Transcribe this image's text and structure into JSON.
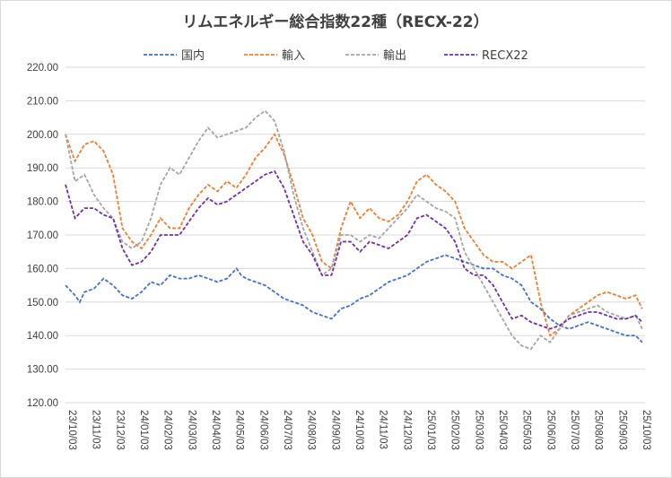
{
  "chart_data": {
    "type": "line",
    "title": "リムエネルギー総合指数22種（RECX-22）",
    "xlabel": "",
    "ylabel": "",
    "ylim": [
      120,
      220
    ],
    "yticks": [
      "220.00",
      "210.00",
      "200.00",
      "190.00",
      "180.00",
      "170.00",
      "160.00",
      "150.00",
      "140.00",
      "130.00",
      "120.00"
    ],
    "ytick_values": [
      220,
      210,
      200,
      190,
      180,
      170,
      160,
      150,
      140,
      130,
      120
    ],
    "xticks": [
      "23/10/03",
      "23/11/03",
      "23/12/03",
      "24/01/03",
      "24/02/03",
      "24/03/03",
      "24/04/03",
      "24/05/03",
      "24/06/03",
      "24/07/03",
      "24/08/03",
      "24/09/03",
      "24/10/03",
      "24/11/03",
      "24/12/03",
      "25/01/03",
      "25/02/03",
      "25/03/03",
      "25/04/03",
      "25/05/03",
      "25/06/03",
      "25/07/03",
      "25/08/03",
      "25/09/03",
      "25/10/03"
    ],
    "grid": true,
    "legend_position": "top",
    "series": [
      {
        "name": "国内",
        "color": "#4472c4",
        "values": [
          [
            0,
            155
          ],
          [
            1,
            152
          ],
          [
            1.5,
            150
          ],
          [
            2,
            153
          ],
          [
            3,
            154
          ],
          [
            4,
            157
          ],
          [
            4.5,
            156
          ],
          [
            5,
            155
          ],
          [
            6,
            152
          ],
          [
            7,
            151
          ],
          [
            8,
            153
          ],
          [
            9,
            156
          ],
          [
            10,
            155
          ],
          [
            11,
            158
          ],
          [
            12,
            157
          ],
          [
            13,
            157
          ],
          [
            14,
            158
          ],
          [
            15,
            157
          ],
          [
            16,
            156
          ],
          [
            17,
            157
          ],
          [
            18,
            160
          ],
          [
            18.5,
            158
          ],
          [
            19,
            157
          ],
          [
            20,
            156
          ],
          [
            21,
            155
          ],
          [
            22,
            153
          ],
          [
            23,
            151
          ],
          [
            24,
            150
          ],
          [
            25,
            149
          ],
          [
            26,
            147
          ],
          [
            27,
            146
          ],
          [
            28,
            145
          ],
          [
            29,
            148
          ],
          [
            30,
            149
          ],
          [
            31,
            151
          ],
          [
            32,
            152
          ],
          [
            33,
            154
          ],
          [
            34,
            156
          ],
          [
            35,
            157
          ],
          [
            36,
            158
          ],
          [
            37,
            160
          ],
          [
            38,
            162
          ],
          [
            39,
            163
          ],
          [
            40,
            164
          ],
          [
            41,
            163
          ],
          [
            42,
            162
          ],
          [
            43,
            161
          ],
          [
            44,
            160
          ],
          [
            45,
            160
          ],
          [
            46,
            158
          ],
          [
            47,
            157
          ],
          [
            48,
            155
          ],
          [
            49,
            150
          ],
          [
            50,
            148
          ],
          [
            51,
            145
          ],
          [
            52,
            143
          ],
          [
            53,
            142
          ],
          [
            54,
            143
          ],
          [
            55,
            144
          ],
          [
            56,
            143
          ],
          [
            57,
            142
          ],
          [
            58,
            141
          ],
          [
            59,
            140
          ],
          [
            60,
            140
          ],
          [
            60.7,
            138
          ]
        ]
      },
      {
        "name": "輸入",
        "color": "#ed7d31",
        "values": [
          [
            0,
            200
          ],
          [
            1,
            192
          ],
          [
            2,
            197
          ],
          [
            3,
            198
          ],
          [
            4,
            195
          ],
          [
            5,
            188
          ],
          [
            6,
            172
          ],
          [
            7,
            168
          ],
          [
            8,
            166
          ],
          [
            9,
            170
          ],
          [
            10,
            175
          ],
          [
            11,
            172
          ],
          [
            12,
            172
          ],
          [
            13,
            178
          ],
          [
            14,
            182
          ],
          [
            15,
            185
          ],
          [
            16,
            183
          ],
          [
            17,
            186
          ],
          [
            18,
            184
          ],
          [
            19,
            188
          ],
          [
            20,
            193
          ],
          [
            21,
            196
          ],
          [
            22,
            200
          ],
          [
            23,
            194
          ],
          [
            24,
            185
          ],
          [
            25,
            175
          ],
          [
            26,
            170
          ],
          [
            27,
            162
          ],
          [
            28,
            160
          ],
          [
            29,
            172
          ],
          [
            30,
            180
          ],
          [
            31,
            175
          ],
          [
            32,
            178
          ],
          [
            33,
            175
          ],
          [
            34,
            174
          ],
          [
            35,
            176
          ],
          [
            36,
            180
          ],
          [
            37,
            186
          ],
          [
            38,
            188
          ],
          [
            39,
            185
          ],
          [
            40,
            183
          ],
          [
            41,
            180
          ],
          [
            42,
            172
          ],
          [
            43,
            168
          ],
          [
            44,
            164
          ],
          [
            45,
            162
          ],
          [
            46,
            162
          ],
          [
            47,
            160
          ],
          [
            48,
            162
          ],
          [
            49,
            164
          ],
          [
            50,
            150
          ],
          [
            51,
            140
          ],
          [
            52,
            142
          ],
          [
            53,
            146
          ],
          [
            54,
            148
          ],
          [
            55,
            150
          ],
          [
            56,
            152
          ],
          [
            57,
            153
          ],
          [
            58,
            152
          ],
          [
            59,
            151
          ],
          [
            60,
            152
          ],
          [
            60.7,
            148
          ]
        ]
      },
      {
        "name": "輸出",
        "color": "#a5a5a5",
        "values": [
          [
            0,
            200
          ],
          [
            1,
            186
          ],
          [
            2,
            188
          ],
          [
            3,
            182
          ],
          [
            4,
            178
          ],
          [
            5,
            175
          ],
          [
            6,
            168
          ],
          [
            7,
            166
          ],
          [
            8,
            168
          ],
          [
            9,
            175
          ],
          [
            10,
            185
          ],
          [
            11,
            190
          ],
          [
            12,
            188
          ],
          [
            13,
            193
          ],
          [
            14,
            198
          ],
          [
            15,
            202
          ],
          [
            16,
            199
          ],
          [
            17,
            200
          ],
          [
            18,
            201
          ],
          [
            19,
            202
          ],
          [
            20,
            205
          ],
          [
            21,
            207
          ],
          [
            22,
            204
          ],
          [
            23,
            195
          ],
          [
            24,
            182
          ],
          [
            25,
            172
          ],
          [
            26,
            165
          ],
          [
            27,
            158
          ],
          [
            28,
            160
          ],
          [
            29,
            170
          ],
          [
            30,
            170
          ],
          [
            31,
            168
          ],
          [
            32,
            170
          ],
          [
            33,
            169
          ],
          [
            34,
            172
          ],
          [
            35,
            175
          ],
          [
            36,
            178
          ],
          [
            37,
            182
          ],
          [
            38,
            180
          ],
          [
            39,
            178
          ],
          [
            40,
            177
          ],
          [
            41,
            175
          ],
          [
            42,
            165
          ],
          [
            43,
            160
          ],
          [
            44,
            155
          ],
          [
            45,
            150
          ],
          [
            46,
            145
          ],
          [
            47,
            140
          ],
          [
            48,
            137
          ],
          [
            49,
            136
          ],
          [
            50,
            140
          ],
          [
            51,
            138
          ],
          [
            52,
            142
          ],
          [
            53,
            146
          ],
          [
            54,
            147
          ],
          [
            55,
            148
          ],
          [
            56,
            149
          ],
          [
            57,
            147
          ],
          [
            58,
            146
          ],
          [
            59,
            145
          ],
          [
            60,
            146
          ],
          [
            60.7,
            142
          ]
        ]
      },
      {
        "name": "RECX22",
        "color": "#7030a0",
        "values": [
          [
            0,
            185
          ],
          [
            1,
            175
          ],
          [
            2,
            178
          ],
          [
            3,
            178
          ],
          [
            4,
            176
          ],
          [
            5,
            175
          ],
          [
            6,
            166
          ],
          [
            7,
            161
          ],
          [
            8,
            162
          ],
          [
            9,
            165
          ],
          [
            10,
            170
          ],
          [
            11,
            170
          ],
          [
            12,
            170
          ],
          [
            13,
            174
          ],
          [
            14,
            178
          ],
          [
            15,
            181
          ],
          [
            16,
            179
          ],
          [
            17,
            180
          ],
          [
            18,
            182
          ],
          [
            19,
            184
          ],
          [
            20,
            186
          ],
          [
            21,
            188
          ],
          [
            22,
            189
          ],
          [
            23,
            184
          ],
          [
            24,
            176
          ],
          [
            25,
            168
          ],
          [
            26,
            164
          ],
          [
            27,
            158
          ],
          [
            28,
            158
          ],
          [
            29,
            168
          ],
          [
            30,
            168
          ],
          [
            31,
            165
          ],
          [
            32,
            168
          ],
          [
            33,
            167
          ],
          [
            34,
            166
          ],
          [
            35,
            168
          ],
          [
            36,
            170
          ],
          [
            37,
            175
          ],
          [
            38,
            176
          ],
          [
            39,
            174
          ],
          [
            40,
            172
          ],
          [
            41,
            168
          ],
          [
            42,
            160
          ],
          [
            43,
            158
          ],
          [
            44,
            158
          ],
          [
            45,
            155
          ],
          [
            46,
            150
          ],
          [
            47,
            145
          ],
          [
            48,
            146
          ],
          [
            49,
            144
          ],
          [
            50,
            143
          ],
          [
            51,
            142
          ],
          [
            52,
            143
          ],
          [
            53,
            145
          ],
          [
            54,
            146
          ],
          [
            55,
            147
          ],
          [
            56,
            147
          ],
          [
            57,
            146
          ],
          [
            58,
            145
          ],
          [
            59,
            145
          ],
          [
            60,
            146
          ],
          [
            60.7,
            144
          ]
        ]
      }
    ]
  }
}
